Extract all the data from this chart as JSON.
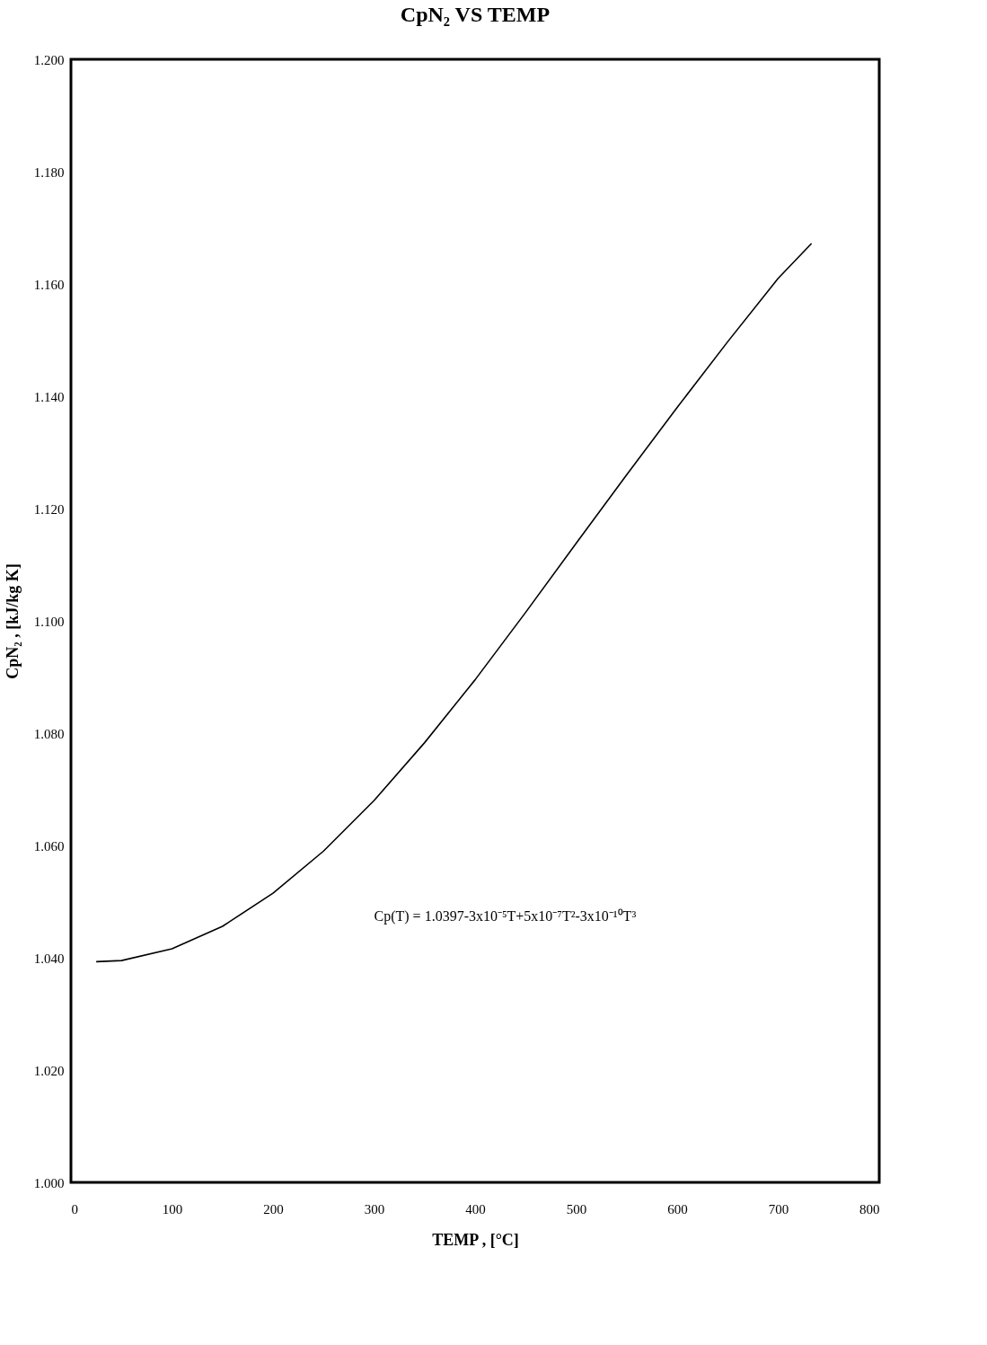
{
  "chart_data": {
    "type": "line",
    "title": "CpN₂  VS  TEMP",
    "xlabel": "TEMP , [°C]",
    "ylabel": "CpN₂ , [kJ/kg K]",
    "x": [
      25,
      50,
      100,
      150,
      200,
      250,
      300,
      350,
      400,
      450,
      500,
      550,
      600,
      650,
      700,
      733
    ],
    "series": [
      {
        "color": "#000000",
        "values": [
          1.0393,
          1.0395,
          1.0416,
          1.0456,
          1.0515,
          1.059,
          1.068,
          1.0783,
          1.0895,
          1.1015,
          1.1138,
          1.126,
          1.138,
          1.1497,
          1.161,
          1.1672
        ]
      }
    ],
    "xlim": [
      0,
      800
    ],
    "xticks": [
      0,
      100,
      200,
      300,
      400,
      500,
      600,
      700,
      800
    ],
    "ylim": [
      1.0,
      1.2
    ],
    "yticks": [
      {
        "value": 1.0,
        "label": "1.000"
      },
      {
        "value": 1.02,
        "label": "1.020"
      },
      {
        "value": 1.04,
        "label": "1.040"
      },
      {
        "value": 1.06,
        "label": "1.060"
      },
      {
        "value": 1.08,
        "label": "1.080"
      },
      {
        "value": 1.1,
        "label": "1.100"
      },
      {
        "value": 1.12,
        "label": "1.120"
      },
      {
        "value": 1.14,
        "label": "1.140"
      },
      {
        "value": 1.16,
        "label": "1.160"
      },
      {
        "value": 1.18,
        "label": "1.180"
      },
      {
        "value": 1.2,
        "label": "1.200"
      }
    ],
    "annotations": [
      "Cp(T) = 1.0397-3x10⁻⁵T+5x10⁻⁷T²-3x10⁻¹⁰T³"
    ],
    "grid": false,
    "marker": "none",
    "line_style": "solid"
  }
}
